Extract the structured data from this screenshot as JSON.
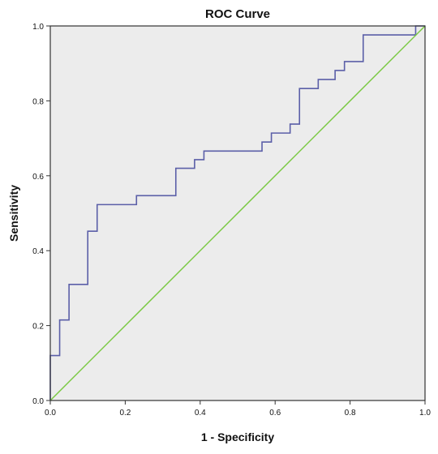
{
  "chart_data": {
    "type": "line",
    "title": "ROC Curve",
    "xlabel": "1 - Specificity",
    "ylabel": "Sensitivity",
    "xlim": [
      0,
      1
    ],
    "ylim": [
      0,
      1
    ],
    "x_ticks": [
      "0.0",
      "0.2",
      "0.4",
      "0.6",
      "0.8",
      "1.0"
    ],
    "y_ticks": [
      "0.0",
      "0.2",
      "0.4",
      "0.6",
      "0.8",
      "1.0"
    ],
    "grid": false,
    "background_color": "#ececec",
    "series": [
      {
        "color": "#5b5fa8",
        "style": "step",
        "points": [
          [
            0.0,
            0.0
          ],
          [
            0.0,
            0.12
          ],
          [
            0.025,
            0.12
          ],
          [
            0.025,
            0.215
          ],
          [
            0.05,
            0.215
          ],
          [
            0.05,
            0.31
          ],
          [
            0.1,
            0.31
          ],
          [
            0.1,
            0.452
          ],
          [
            0.125,
            0.452
          ],
          [
            0.125,
            0.523
          ],
          [
            0.23,
            0.523
          ],
          [
            0.23,
            0.547
          ],
          [
            0.335,
            0.547
          ],
          [
            0.335,
            0.62
          ],
          [
            0.385,
            0.62
          ],
          [
            0.385,
            0.643
          ],
          [
            0.41,
            0.643
          ],
          [
            0.41,
            0.666
          ],
          [
            0.565,
            0.666
          ],
          [
            0.565,
            0.69
          ],
          [
            0.59,
            0.69
          ],
          [
            0.59,
            0.714
          ],
          [
            0.64,
            0.714
          ],
          [
            0.64,
            0.738
          ],
          [
            0.665,
            0.738
          ],
          [
            0.665,
            0.833
          ],
          [
            0.715,
            0.833
          ],
          [
            0.715,
            0.857
          ],
          [
            0.76,
            0.857
          ],
          [
            0.76,
            0.881
          ],
          [
            0.785,
            0.881
          ],
          [
            0.785,
            0.905
          ],
          [
            0.835,
            0.905
          ],
          [
            0.835,
            0.976
          ],
          [
            0.975,
            0.976
          ],
          [
            0.975,
            1.0
          ],
          [
            1.0,
            1.0
          ]
        ]
      },
      {
        "color": "#7ac943",
        "style": "reference",
        "points": [
          [
            0,
            0
          ],
          [
            1,
            1
          ]
        ]
      }
    ]
  }
}
